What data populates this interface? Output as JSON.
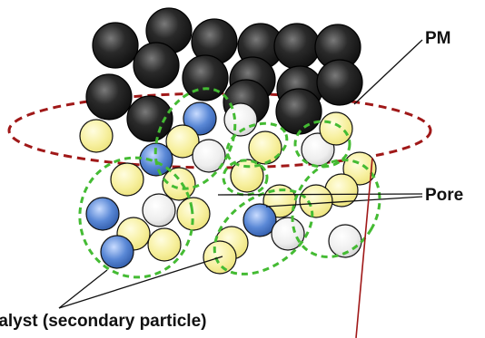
{
  "labels": {
    "pm": "PM",
    "pore": "Pore",
    "catalyst": "talyst (secondary particle)"
  },
  "colors": {
    "pm_particle": "#1e1e1e",
    "catalyst_yellow": "#f5ef9a",
    "catalyst_blue": "#4f7fcf",
    "catalyst_white": "#e6e6e6",
    "secondary_outline": "#44bb33",
    "interface_ellipse": "#a01818",
    "pore_line": "#a01818"
  }
}
